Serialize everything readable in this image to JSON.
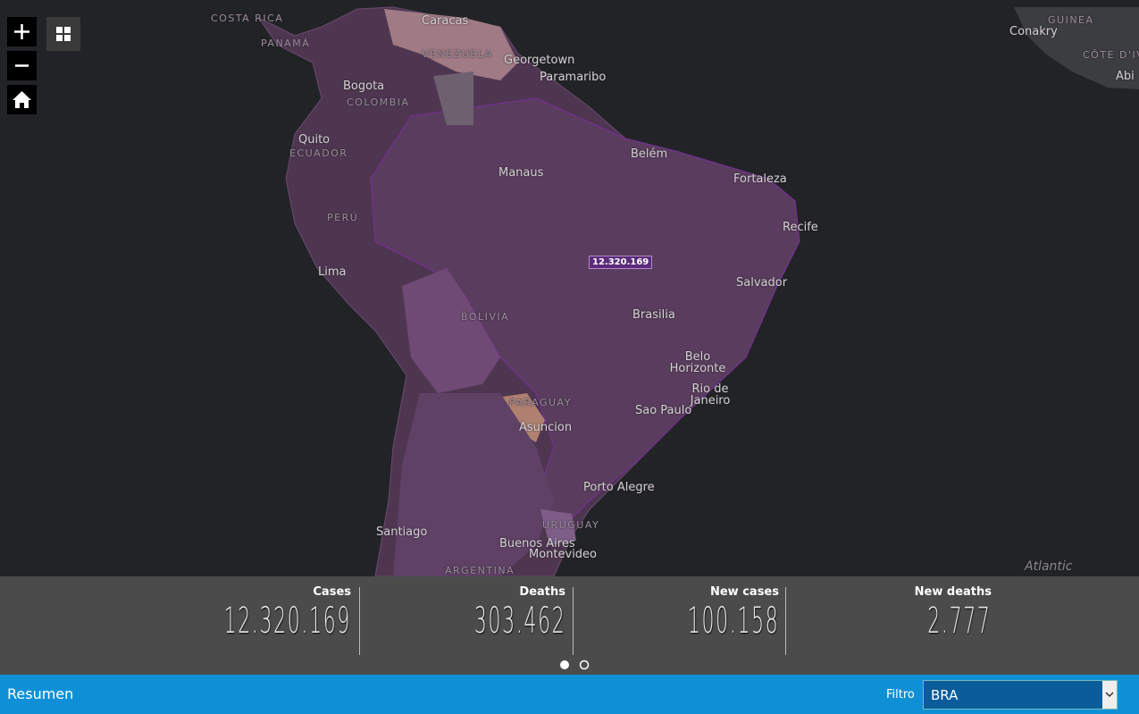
{
  "map": {
    "labels": [
      "COSTA RICA",
      "PANAMÁ",
      "Caracas",
      "VENEZUELA",
      "Georgetown",
      "Paramaribo",
      "Bogota",
      "COLOMBIA",
      "Quito",
      "ECUADOR",
      "PERÚ",
      "Lima",
      "Manaus",
      "Belém",
      "Fortaleza",
      "Recife",
      "Salvador",
      "Brasilia",
      "Belo Horizonte",
      "Rio de Janeiro",
      "Sao Paulo",
      "BOLIVIA",
      "PARAGUAY",
      "Asuncion",
      "Porto Alegre",
      "Santiago",
      "Buenos Aires",
      "Montevideo",
      "URUGUAY",
      "ARGENTINA",
      "Atlantic",
      "GUINEA",
      "Conakry",
      "CÔTE D'IV",
      "Abi"
    ],
    "popup": "12.320.169"
  },
  "stats": [
    {
      "label": "Cases",
      "value": "12.320.169"
    },
    {
      "label": "Deaths",
      "value": "303.462"
    },
    {
      "label": "New cases",
      "value": "100.158"
    },
    {
      "label": "New deaths",
      "value": "2.777"
    }
  ],
  "footer": {
    "title": "Resumen",
    "filter_label": "Filtro",
    "filter_value": "BRA"
  }
}
